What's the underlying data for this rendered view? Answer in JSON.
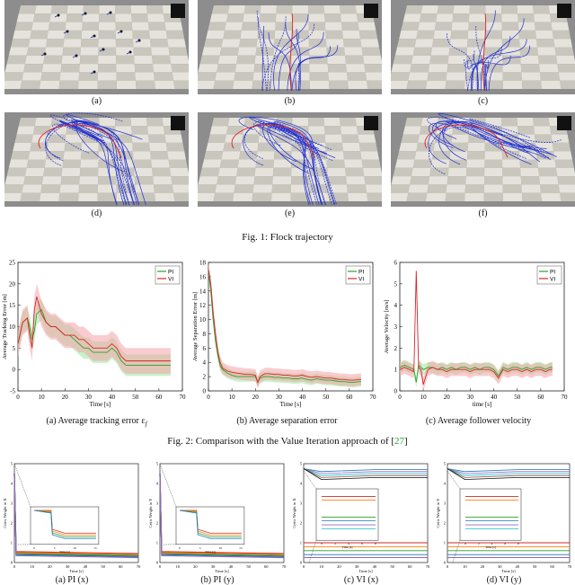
{
  "fig1": {
    "panels": [
      "(a)",
      "(b)",
      "(c)",
      "(d)",
      "(e)",
      "(f)"
    ],
    "caption": "Fig. 1: Flock trajectory"
  },
  "fig2": {
    "caption_prefix": "Fig. 2: Comparison with the Value Iteration approach of [",
    "caption_ref": "27",
    "caption_suffix": "]",
    "subcaptions": [
      "(a) Average tracking error ε",
      "(b) Average separation error",
      "(c) Average follower velocity"
    ],
    "subcap_a_sub": "f"
  },
  "fig3": {
    "subcaptions": [
      "(a) PI (x)",
      "(b) PI (y)",
      "(c) VI (x)",
      "(d) VI (y)"
    ]
  },
  "colors": {
    "pi": "#2ca02c",
    "vi": "#d62728",
    "pi_band": "#9be89b",
    "vi_band": "#f4a3a8"
  },
  "chart_data": [
    {
      "type": "line",
      "title": "",
      "xlabel": "Time [s]",
      "ylabel": "Average Tracking Error [m]",
      "xlim": [
        0,
        70
      ],
      "ylim": [
        -5,
        25
      ],
      "xticks": [
        0,
        10,
        20,
        30,
        40,
        50,
        60,
        70
      ],
      "yticks": [
        -5,
        0,
        5,
        10,
        15,
        20,
        25
      ],
      "legend": [
        "PI",
        "VI"
      ],
      "legend_position": "top-right",
      "series": [
        {
          "name": "PI",
          "x": [
            0,
            2,
            4,
            5,
            6,
            7,
            8,
            10,
            12,
            14,
            16,
            18,
            20,
            22,
            24,
            26,
            28,
            30,
            32,
            34,
            36,
            38,
            40,
            42,
            44,
            46,
            48,
            50,
            52,
            54,
            56,
            58,
            60,
            62,
            64,
            65
          ],
          "values": [
            6,
            11,
            12,
            10,
            7,
            9,
            13,
            14,
            11,
            10,
            10,
            9,
            8,
            8,
            7,
            6,
            5,
            5,
            4,
            4,
            4,
            4,
            5,
            4,
            2,
            1,
            1,
            1,
            1,
            1,
            1,
            1,
            1,
            1,
            1,
            1
          ]
        },
        {
          "name": "VI",
          "x": [
            0,
            2,
            4,
            5,
            6,
            7,
            8,
            10,
            12,
            14,
            16,
            18,
            20,
            22,
            24,
            26,
            28,
            30,
            32,
            34,
            36,
            38,
            40,
            42,
            44,
            46,
            48,
            50,
            52,
            54,
            56,
            58,
            60,
            62,
            64,
            65
          ],
          "values": [
            6,
            11,
            12,
            8,
            5,
            14,
            17,
            13,
            11,
            10,
            10,
            9,
            8,
            8,
            8,
            7,
            7,
            6,
            5,
            5,
            5,
            5,
            6,
            5,
            3,
            2,
            2,
            2,
            2,
            2,
            2,
            2,
            2,
            2,
            2,
            2
          ]
        }
      ]
    },
    {
      "type": "line",
      "title": "",
      "xlabel": "Time [s]",
      "ylabel": "Average Separation Error [m]",
      "xlim": [
        0,
        70
      ],
      "ylim": [
        0,
        18
      ],
      "xticks": [
        0,
        10,
        20,
        30,
        40,
        50,
        60,
        70
      ],
      "yticks": [
        0,
        2,
        4,
        6,
        8,
        10,
        12,
        14,
        16,
        18
      ],
      "legend": [
        "PI",
        "VI"
      ],
      "legend_position": "top-right",
      "series": [
        {
          "name": "PI",
          "x": [
            0,
            1,
            2,
            3,
            4,
            5,
            6,
            8,
            10,
            12,
            14,
            16,
            18,
            20,
            21,
            22,
            24,
            26,
            28,
            30,
            32,
            34,
            36,
            38,
            40,
            42,
            44,
            46,
            48,
            50,
            52,
            54,
            56,
            58,
            60,
            62,
            64,
            65
          ],
          "values": [
            17,
            14,
            10,
            7,
            5,
            3.5,
            3,
            2.5,
            2.2,
            2,
            2,
            2,
            2,
            2,
            1.2,
            1.8,
            2,
            2,
            1.9,
            1.9,
            1.8,
            1.8,
            1.7,
            1.7,
            1.8,
            1.6,
            1.5,
            1.7,
            1.6,
            1.5,
            1.5,
            1.4,
            1.3,
            1.3,
            1.2,
            1.2,
            1.3,
            1.3
          ]
        },
        {
          "name": "VI",
          "x": [
            0,
            1,
            2,
            3,
            4,
            5,
            6,
            8,
            10,
            12,
            14,
            16,
            18,
            20,
            21,
            22,
            24,
            26,
            28,
            30,
            32,
            34,
            36,
            38,
            40,
            42,
            44,
            46,
            48,
            50,
            52,
            54,
            56,
            58,
            60,
            62,
            64,
            65
          ],
          "values": [
            17,
            15,
            11,
            8,
            5.5,
            4,
            3.2,
            2.8,
            2.6,
            2.5,
            2.4,
            2.3,
            2.3,
            2.2,
            1.2,
            2,
            2.4,
            2.4,
            2.3,
            2.3,
            2.2,
            2.2,
            2.1,
            2.1,
            2.2,
            2,
            1.9,
            2,
            1.9,
            1.8,
            1.8,
            1.7,
            1.6,
            1.6,
            1.5,
            1.5,
            1.6,
            1.6
          ]
        }
      ]
    },
    {
      "type": "line",
      "title": "",
      "xlabel": "time [s]",
      "ylabel": "Average Velocity [m/s]",
      "xlim": [
        0,
        70
      ],
      "ylim": [
        0,
        6
      ],
      "xticks": [
        0,
        10,
        20,
        30,
        40,
        50,
        60,
        70
      ],
      "yticks": [
        0,
        1,
        2,
        3,
        4,
        5,
        6
      ],
      "legend": [
        "PI",
        "VI"
      ],
      "legend_position": "top-right",
      "series": [
        {
          "name": "PI",
          "x": [
            0,
            2,
            4,
            6,
            7,
            8,
            9,
            10,
            12,
            14,
            16,
            18,
            20,
            22,
            24,
            26,
            28,
            30,
            32,
            34,
            36,
            38,
            40,
            42,
            44,
            46,
            48,
            50,
            52,
            54,
            56,
            58,
            60,
            62,
            64,
            65
          ],
          "values": [
            1.1,
            1.2,
            1.1,
            1.0,
            0.4,
            1.2,
            1.1,
            1.0,
            1.1,
            1.1,
            1.0,
            1.1,
            1.0,
            1.1,
            1.0,
            1.1,
            1.1,
            1.0,
            1.1,
            1.0,
            1.1,
            1.1,
            1.0,
            0.7,
            1.1,
            1.0,
            1.1,
            1.1,
            1.0,
            1.1,
            1.0,
            1.1,
            1.1,
            1.0,
            1.1,
            1.1
          ]
        },
        {
          "name": "VI",
          "x": [
            0,
            2,
            4,
            6,
            7,
            8,
            9,
            10,
            12,
            14,
            16,
            18,
            20,
            22,
            24,
            26,
            28,
            30,
            32,
            34,
            36,
            38,
            40,
            42,
            44,
            46,
            48,
            50,
            52,
            54,
            56,
            58,
            60,
            62,
            64,
            65
          ],
          "values": [
            1.0,
            1.1,
            1.0,
            0.9,
            5.6,
            1.1,
            1.0,
            0.3,
            1.0,
            1.1,
            1.0,
            1.0,
            0.9,
            1.0,
            1.0,
            1.0,
            1.0,
            0.9,
            1.0,
            1.0,
            1.0,
            1.0,
            0.9,
            0.6,
            1.0,
            0.9,
            1.0,
            1.0,
            0.9,
            1.0,
            0.9,
            1.0,
            1.0,
            0.9,
            1.0,
            1.0
          ]
        }
      ]
    },
    {
      "type": "line",
      "title": "",
      "xlabel": "Time [s]",
      "ylabel": "Critic Weight in X",
      "xlim": [
        0,
        70
      ],
      "ylim": [
        0,
        5
      ],
      "xticks": [
        0,
        10,
        20,
        30,
        40,
        50,
        60,
        70
      ],
      "yticks": [
        0,
        1,
        2,
        3,
        4,
        5
      ],
      "inset_xticks": [
        0,
        5,
        10,
        15
      ],
      "inset_xlabel": "Time [s]"
    },
    {
      "type": "line",
      "title": "",
      "xlabel": "Time [s]",
      "ylabel": "Critic Weight in Y",
      "xlim": [
        0,
        70
      ],
      "ylim": [
        0,
        5
      ],
      "xticks": [
        0,
        10,
        20,
        30,
        40,
        50,
        60,
        70
      ],
      "yticks": [
        0,
        1,
        2,
        3,
        4,
        5
      ],
      "inset_xticks": [
        0,
        5,
        10,
        15
      ],
      "inset_xlabel": "Time [s]"
    },
    {
      "type": "line",
      "title": "",
      "xlabel": "Time [s]",
      "ylabel": "Critic Weight in X",
      "xlim": [
        0,
        70
      ],
      "ylim": [
        0,
        5
      ],
      "xticks": [
        0,
        10,
        20,
        30,
        40,
        50,
        60,
        70
      ],
      "yticks": [
        0,
        1,
        2,
        3,
        4,
        5
      ],
      "inset_xticks": [
        0,
        2,
        4,
        6,
        8
      ],
      "inset_xlabel": "Time [s]"
    },
    {
      "type": "line",
      "title": "",
      "xlabel": "Time [s]",
      "ylabel": "Critic Weight in Y",
      "xlim": [
        0,
        70
      ],
      "ylim": [
        0,
        5
      ],
      "xticks": [
        0,
        10,
        20,
        30,
        40,
        50,
        60,
        70
      ],
      "yticks": [
        0,
        1,
        2,
        3,
        4,
        5
      ],
      "inset_xticks": [
        0,
        2,
        4,
        6,
        8
      ],
      "inset_xlabel": "Time [s]"
    }
  ]
}
